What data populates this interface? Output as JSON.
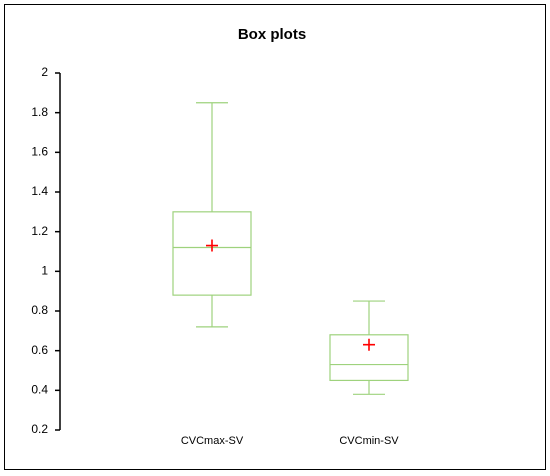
{
  "chart_data": {
    "type": "box",
    "title": "Box plots",
    "categories": [
      "CVCmax-SV",
      "CVCmin-SV"
    ],
    "color": "#9ed27d",
    "mean_color": "#ff0000",
    "boxes": [
      {
        "min": 0.72,
        "q1": 0.88,
        "median": 1.12,
        "q3": 1.3,
        "max": 1.85,
        "mean": 1.13
      },
      {
        "min": 0.38,
        "q1": 0.45,
        "median": 0.53,
        "q3": 0.68,
        "max": 0.85,
        "mean": 0.63
      }
    ],
    "ylim": [
      0.2,
      2
    ],
    "yticks": [
      0.2,
      0.4,
      0.6,
      0.8,
      1,
      1.2,
      1.4,
      1.6,
      1.8,
      2
    ]
  }
}
